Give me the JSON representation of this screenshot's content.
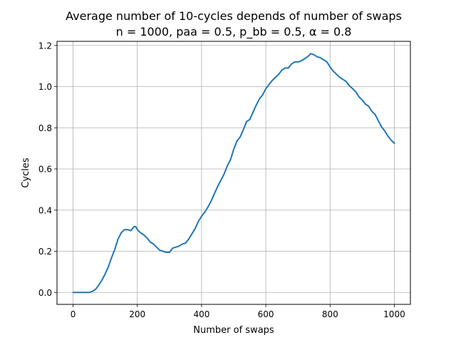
{
  "chart_data": {
    "type": "line",
    "title_line1": "Average number of 10-cycles depends of number of swaps",
    "title_line2": "n = 1000, paa = 0.5, p_bb = 0.5, α = 0.8",
    "xlabel": "Number of swaps",
    "ylabel": "Cycles",
    "xlim": [
      -50,
      1050
    ],
    "ylim": [
      -0.058,
      1.22
    ],
    "xticks": [
      0,
      200,
      400,
      600,
      800,
      1000
    ],
    "yticks": [
      0.0,
      0.2,
      0.4,
      0.6,
      0.8,
      1.0,
      1.2
    ],
    "xtick_labels": [
      "0",
      "200",
      "400",
      "600",
      "800",
      "1000"
    ],
    "ytick_labels": [
      "0.0",
      "0.2",
      "0.4",
      "0.6",
      "0.8",
      "1.0",
      "1.2"
    ],
    "grid": true,
    "series": [
      {
        "color": "#1f77b4",
        "x": [
          0,
          20,
          40,
          50,
          60,
          70,
          80,
          90,
          100,
          110,
          120,
          130,
          140,
          150,
          160,
          170,
          180,
          190,
          195,
          200,
          210,
          220,
          230,
          240,
          250,
          260,
          270,
          280,
          290,
          300,
          310,
          320,
          330,
          340,
          350,
          360,
          370,
          380,
          390,
          400,
          410,
          420,
          430,
          440,
          450,
          460,
          470,
          480,
          490,
          500,
          510,
          520,
          530,
          540,
          550,
          560,
          570,
          580,
          590,
          600,
          610,
          620,
          630,
          640,
          650,
          660,
          670,
          680,
          690,
          700,
          710,
          720,
          730,
          740,
          750,
          760,
          770,
          780,
          790,
          800,
          810,
          820,
          830,
          840,
          850,
          860,
          870,
          880,
          890,
          900,
          910,
          920,
          930,
          940,
          950,
          960,
          970,
          980,
          990,
          1000
        ],
        "y": [
          0.0,
          0.0,
          0.0,
          0.0,
          0.005,
          0.015,
          0.035,
          0.06,
          0.09,
          0.125,
          0.17,
          0.21,
          0.26,
          0.29,
          0.305,
          0.305,
          0.3,
          0.32,
          0.32,
          0.305,
          0.29,
          0.28,
          0.265,
          0.245,
          0.235,
          0.22,
          0.205,
          0.2,
          0.195,
          0.195,
          0.215,
          0.22,
          0.225,
          0.235,
          0.24,
          0.26,
          0.285,
          0.31,
          0.345,
          0.37,
          0.39,
          0.415,
          0.445,
          0.48,
          0.515,
          0.545,
          0.575,
          0.615,
          0.645,
          0.695,
          0.735,
          0.755,
          0.79,
          0.83,
          0.84,
          0.875,
          0.91,
          0.94,
          0.96,
          0.99,
          1.01,
          1.03,
          1.045,
          1.06,
          1.08,
          1.09,
          1.09,
          1.11,
          1.12,
          1.12,
          1.125,
          1.135,
          1.145,
          1.16,
          1.155,
          1.145,
          1.14,
          1.13,
          1.12,
          1.095,
          1.075,
          1.06,
          1.045,
          1.035,
          1.025,
          1.005,
          0.99,
          0.975,
          0.95,
          0.935,
          0.915,
          0.905,
          0.88,
          0.865,
          0.835,
          0.805,
          0.785,
          0.76,
          0.74,
          0.725
        ]
      }
    ]
  }
}
